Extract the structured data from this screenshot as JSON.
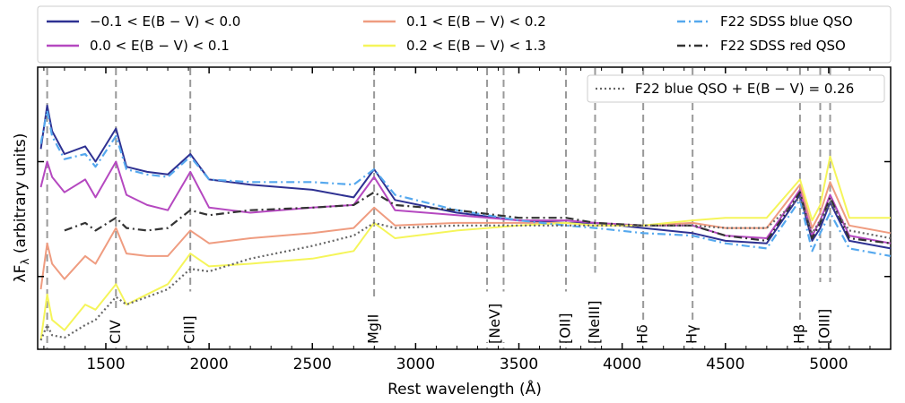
{
  "chart_data": {
    "type": "line",
    "xlabel": "Rest wavelength (Å)",
    "ylabel": "λF_λ (arbitrary units)",
    "ylabel_main": "λF",
    "ylabel_sub": "λ",
    "ylabel_rest": " (arbitrary units)",
    "xlim": [
      1170,
      5300
    ],
    "ylim": [
      0,
      100
    ],
    "y_scale_note": "arbitrary units",
    "xticks": [
      1500,
      2000,
      2500,
      3000,
      3500,
      4000,
      4500,
      5000
    ],
    "xtick_labels": [
      "1500",
      "2000",
      "2500",
      "3000",
      "3500",
      "4000",
      "4500",
      "5000"
    ],
    "yticks": [
      25,
      70
    ],
    "legend": {
      "placement": "top (outside, three columns)",
      "entries": [
        {
          "label": "−0.1 < E(B − V) < 0.0",
          "color": "#2e3192",
          "style": "solid"
        },
        {
          "label": "0.0 < E(B − V) < 0.1",
          "color": "#b548c0",
          "style": "solid"
        },
        {
          "label": "0.1 < E(B − V) < 0.2",
          "color": "#ef9c80",
          "style": "solid"
        },
        {
          "label": "0.2 < E(B − V) < 1.3",
          "color": "#f5f55a",
          "style": "solid"
        },
        {
          "label": "F22 SDSS blue QSO",
          "color": "#55a8ee",
          "style": "dashdot"
        },
        {
          "label": "F22 SDSS red QSO",
          "color": "#333333",
          "style": "dashdot"
        }
      ]
    },
    "inset_legend": {
      "placement": "top-right",
      "label": "F22 blue QSO + E(B − V) = 0.26",
      "color": "#666666",
      "style": "dotted"
    },
    "line_markers": [
      {
        "label": "CIV",
        "x": [
          1549
        ]
      },
      {
        "label": "CIII]",
        "x": [
          1909
        ]
      },
      {
        "label": "MgII",
        "x": [
          2799
        ]
      },
      {
        "label": "[NeV]",
        "x": [
          3346,
          3426
        ]
      },
      {
        "label": "[OII]",
        "x": [
          3728
        ]
      },
      {
        "label": "[NeIII]",
        "x": [
          3869
        ]
      },
      {
        "label": "Hδ",
        "x": [
          4102
        ]
      },
      {
        "label": "Hγ",
        "x": [
          4341
        ]
      },
      {
        "label": "Hβ",
        "x": [
          4861
        ]
      },
      {
        "label": "[OIII]",
        "x": [
          4959,
          5007
        ]
      }
    ],
    "extra_marker_x": [
      1216
    ],
    "series": [
      {
        "name": "−0.1 < E(B − V) < 0.0",
        "color": "#2e3192",
        "style": "solid",
        "x": [
          1185,
          1216,
          1240,
          1300,
          1400,
          1450,
          1549,
          1600,
          1700,
          1800,
          1909,
          2000,
          2200,
          2500,
          2700,
          2799,
          2900,
          3200,
          3500,
          3728,
          3869,
          4102,
          4341,
          4500,
          4700,
          4861,
          4920,
          4959,
          5007,
          5100,
          5300
        ],
        "y": [
          75,
          92,
          82,
          73,
          76,
          70,
          83,
          68,
          66,
          65,
          73,
          63,
          61,
          59,
          56,
          67,
          55,
          50,
          47,
          46,
          46,
          44,
          42,
          39,
          38,
          57,
          39,
          44,
          54,
          39,
          36
        ]
      },
      {
        "name": "0.0 < E(B − V) < 0.1",
        "color": "#b548c0",
        "style": "solid",
        "x": [
          1185,
          1216,
          1240,
          1300,
          1400,
          1450,
          1549,
          1600,
          1700,
          1800,
          1909,
          2000,
          2200,
          2500,
          2700,
          2799,
          2900,
          3200,
          3500,
          3728,
          3869,
          4102,
          4341,
          4500,
          4700,
          4861,
          4920,
          4959,
          5007,
          5100,
          5300
        ],
        "y": [
          60,
          70,
          64,
          58,
          63,
          56,
          70,
          57,
          53,
          51,
          66,
          52,
          50,
          52,
          53,
          64,
          51,
          49,
          47,
          47,
          46,
          45,
          45,
          41,
          40,
          59,
          41,
          47,
          57,
          41,
          38
        ]
      },
      {
        "name": "0.1 < E(B − V) < 0.2",
        "color": "#ef9c80",
        "style": "solid",
        "x": [
          1185,
          1216,
          1240,
          1300,
          1400,
          1450,
          1549,
          1600,
          1700,
          1800,
          1909,
          2000,
          2200,
          2500,
          2700,
          2799,
          2900,
          3200,
          3500,
          3728,
          3869,
          4102,
          4341,
          4500,
          4700,
          4861,
          4920,
          4959,
          5007,
          5100,
          5300
        ],
        "y": [
          20,
          38,
          30,
          24,
          33,
          30,
          44,
          34,
          33,
          33,
          43,
          38,
          40,
          42,
          44,
          52,
          45,
          46,
          46,
          46,
          45,
          45,
          46,
          44,
          44,
          61,
          44,
          50,
          62,
          45,
          42
        ]
      },
      {
        "name": "0.2 < E(B − V) < 1.3",
        "color": "#f5f55a",
        "style": "solid",
        "x": [
          1185,
          1216,
          1240,
          1300,
          1400,
          1450,
          1549,
          1600,
          1700,
          1800,
          1909,
          2000,
          2200,
          2500,
          2700,
          2799,
          2900,
          3200,
          3500,
          3728,
          3869,
          4102,
          4341,
          4500,
          4700,
          4861,
          4920,
          4959,
          5007,
          5100,
          5300
        ],
        "y": [
          0,
          18,
          8,
          4,
          14,
          12,
          22,
          14,
          18,
          22,
          34,
          29,
          30,
          32,
          35,
          46,
          40,
          43,
          45,
          46,
          45,
          45,
          47,
          48,
          48,
          63,
          47,
          53,
          72,
          48,
          48
        ]
      },
      {
        "name": "F22 SDSS blue QSO",
        "color": "#55a8ee",
        "style": "dashdot",
        "x": [
          1185,
          1216,
          1240,
          1300,
          1400,
          1450,
          1549,
          1600,
          1700,
          1800,
          1909,
          2000,
          2200,
          2500,
          2700,
          2799,
          2900,
          3200,
          3500,
          3728,
          3869,
          4102,
          4341,
          4500,
          4700,
          4861,
          4920,
          4959,
          5007,
          5100,
          5300
        ],
        "y": [
          77,
          90,
          80,
          71,
          73,
          68,
          80,
          67,
          65,
          64,
          72,
          63,
          62,
          62,
          61,
          67,
          57,
          51,
          47,
          45,
          44,
          42,
          41,
          38,
          36,
          55,
          35,
          42,
          50,
          36,
          33
        ]
      },
      {
        "name": "F22 SDSS red QSO",
        "color": "#333333",
        "style": "dashdot",
        "x": [
          1300,
          1400,
          1450,
          1549,
          1600,
          1700,
          1800,
          1909,
          2000,
          2200,
          2500,
          2700,
          2799,
          2900,
          3200,
          3500,
          3728,
          3869,
          4102,
          4341,
          4500,
          4700,
          4861,
          4920,
          4959,
          5007,
          5100,
          5300
        ],
        "y": [
          43,
          46,
          43,
          48,
          44,
          43,
          44,
          51,
          49,
          51,
          52,
          53,
          58,
          53,
          51,
          48,
          48,
          46,
          45,
          45,
          41,
          39,
          58,
          40,
          46,
          56,
          40,
          38
        ]
      },
      {
        "name": "F22 blue QSO + E(B − V) = 0.26",
        "color": "#666666",
        "style": "dotted",
        "x": [
          1185,
          1216,
          1240,
          1300,
          1400,
          1450,
          1549,
          1600,
          1700,
          1800,
          1909,
          2000,
          2200,
          2500,
          2700,
          2799,
          2900,
          3200,
          3500,
          3728,
          3869,
          4102,
          4341,
          4500,
          4700,
          4861,
          4920,
          4959,
          5007,
          5100,
          5300
        ],
        "y": [
          0,
          6,
          2,
          1,
          6,
          8,
          17,
          14,
          17,
          20,
          28,
          27,
          32,
          37,
          41,
          46,
          44,
          45,
          45,
          45,
          45,
          45,
          45,
          44,
          44,
          56,
          42,
          47,
          54,
          43,
          40
        ]
      }
    ]
  }
}
